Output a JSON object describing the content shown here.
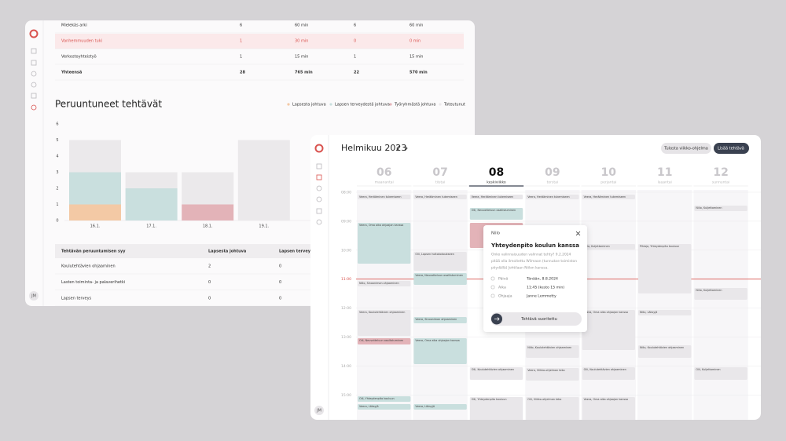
{
  "left_window": {
    "summary_table": {
      "rows": [
        [
          "Mielekäs arki",
          6,
          "60 min",
          6,
          "60 min"
        ],
        [
          "Vanhemmuuden tuki",
          1,
          "30 min",
          0,
          "0 min"
        ],
        [
          "Verkostoyhteistyö",
          1,
          "15 min",
          1,
          "15 min"
        ],
        [
          "Yhteensä",
          28,
          "765 min",
          22,
          "570 min"
        ]
      ]
    },
    "chart": {
      "type": "bar",
      "stacked": true,
      "title": "Peruuntuneet tehtävät",
      "categories": [
        "16.1.",
        "17.1.",
        "18.1.",
        "19.1."
      ],
      "series": [
        {
          "name": "Lapsesta johtuva",
          "color": "#f3c9a5",
          "values": [
            1,
            0,
            0,
            0
          ]
        },
        {
          "name": "Lapsen terveydestä johtuva",
          "color": "#c9dfde",
          "values": [
            2,
            2,
            0,
            0
          ]
        },
        {
          "name": "Työryhmästä johtuva",
          "color": "#e3b3b8",
          "values": [
            0,
            0,
            1,
            0
          ]
        },
        {
          "name": "Toteutunut",
          "color": "#ebe9eb",
          "values": [
            2,
            1,
            2,
            5
          ]
        }
      ],
      "ylim": [
        0,
        6
      ],
      "yticks": [
        0,
        1,
        2,
        3,
        4,
        5,
        6
      ],
      "grid": false,
      "legend": "top-right"
    },
    "cause_table": {
      "header": [
        "Tehtävän peruuntumisen syy",
        "Lapsesta johtuva",
        "Lapsen terveydestä johtuva"
      ],
      "rows": [
        [
          "Koulutehtävien ohjaaminen",
          2,
          0
        ],
        [
          "Lasten toiminta- ja palaverihetki",
          0,
          0
        ],
        [
          "Lapsen terveys",
          0,
          0
        ]
      ]
    },
    "avatar": "JM"
  },
  "right_window": {
    "title": "Helmikuu 2023",
    "buttons": [
      "Tulosta viikko-ohjelma",
      "Lisää tehtävä"
    ],
    "days": [
      {
        "date": "06",
        "weekday": "maanantai"
      },
      {
        "date": "07",
        "weekday": "tiistai"
      },
      {
        "date": "08",
        "weekday": "keskiviikko"
      },
      {
        "date": "09",
        "weekday": "torstai"
      },
      {
        "date": "10",
        "weekday": "perjantai"
      },
      {
        "date": "11",
        "weekday": "lauantai"
      },
      {
        "date": "12",
        "weekday": "sunnuntai"
      }
    ],
    "times": [
      "08:00",
      "09:00",
      "10:00",
      "11:00",
      "12:00",
      "13:00",
      "14:00",
      "15:00"
    ],
    "events": [
      "Veera, Herääminen tukemiseen",
      "Veera, Oma aika ohjaajan kanssa",
      "Niilo, Sinooniman ohjaaminen",
      "Veera, Koulutehtävien ohjaaminen",
      "Olli, Neuvotteluun osallistuminen",
      "Olli, Yhteydenpito kouluun",
      "Veera, Läksyjä",
      "Veera, Herääminen tukemiseen",
      "Olli, Lapsen hoitokokoukseen",
      "Veera, Neuvotteluun osallistuminen",
      "Veera, Sinooniman ohjaaminen",
      "Veera, Oma aika ohjaajan kanssa",
      "Veera, Läksyjä",
      "Veera, Herääminen tukemiseen",
      "Olli, Neuvotteluun osallistuminen",
      "Olli, Koulutehtävien ohjaaminen",
      "Olli, Yhteydenpito kouluun",
      "Veera, Herääminen tukemiseen",
      "Niilo, Koulutehtävien ohjaaminen",
      "Veera, Viikko-ohjelman teko",
      "Olli, Viikko-ohjelman teko",
      "Veera, Herääminen tukemiseen",
      "Niilo, Kuljettaminen",
      "Veera, Oma aika ohjaajan kanssa",
      "Olli, Koulutehtävien ohjaaminen",
      "Veera, Oma aika ohjaajan kanssa",
      "Pihlaja, Yhteydenpito kouluun",
      "Niilo, Läksyjä",
      "Niilo, Koulutehtävien ohjaaminen",
      "Niilo, Kuljettaminen",
      "Niilo, Kuljettaminen",
      "Olli, Kuljettaminen"
    ],
    "popup": {
      "person": "Niilo",
      "title": "Yhteydenpito koulun kanssa",
      "description": [
        "Onko valinnaisuuden valinnat tehty? 9.2.2024",
        "pitää olla ilmoitettu Wilmaan (tunnukse toimiston",
        "pöydällä) Johtilaan Niilon kanssa."
      ],
      "details": [
        [
          "Päivä",
          "Tänään, 8.8.2024"
        ],
        [
          "Aika",
          "11:45 (kesto 15 min)"
        ],
        [
          "Ohjaaja",
          "Janne Lemmetty"
        ]
      ],
      "button": "Tehtävä suoritettu"
    },
    "avatar": "JM"
  }
}
